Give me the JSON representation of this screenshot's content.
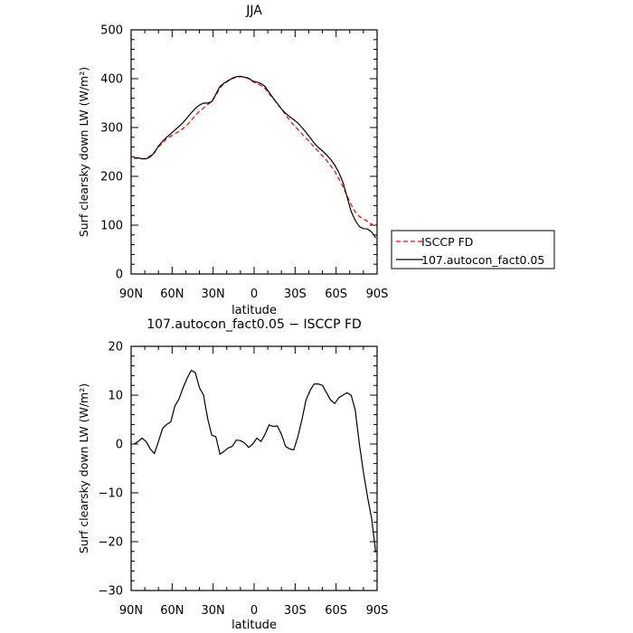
{
  "chart_data": [
    {
      "type": "line",
      "title": "JJA",
      "xlabel": "latitude",
      "ylabel": "Surf clearsky down LW (W/m²)",
      "xlim": [
        90,
        -90
      ],
      "ylim": [
        0,
        500
      ],
      "x_ticks": [
        90,
        60,
        30,
        0,
        -30,
        -60,
        -90
      ],
      "x_tick_labels": [
        "90N",
        "60N",
        "30N",
        "0",
        "30S",
        "60S",
        "90S"
      ],
      "y_ticks": [
        0,
        100,
        200,
        300,
        400,
        500
      ],
      "y_tick_labels": [
        "0",
        "100",
        "200",
        "300",
        "400",
        "500"
      ],
      "legend": {
        "placement": "right, outside plot",
        "entries": [
          "ISCCP FD",
          "107.autocon_fact0.05"
        ]
      },
      "series": [
        {
          "name": "ISCCP FD",
          "color": "#ff0000",
          "dash": "dashed",
          "x": [
            88,
            85,
            82,
            79,
            76,
            73,
            70,
            67,
            64,
            61,
            58,
            55,
            52,
            49,
            46,
            43,
            40,
            37,
            34,
            31,
            28,
            25,
            22,
            19,
            16,
            13,
            10,
            7,
            4,
            1,
            -2,
            -5,
            -8,
            -11,
            -14,
            -17,
            -20,
            -23,
            -26,
            -29,
            -32,
            -35,
            -38,
            -41,
            -44,
            -47,
            -50,
            -53,
            -56,
            -59,
            -62,
            -65,
            -68,
            -71,
            -74,
            -77,
            -80,
            -83,
            -86,
            -89
          ],
          "y": [
            237,
            237,
            236,
            237,
            242,
            250,
            260,
            268,
            277,
            282,
            287,
            292,
            298,
            305,
            315,
            324,
            333,
            340,
            347,
            353,
            366,
            381,
            390,
            395,
            400,
            403,
            404,
            403,
            400,
            394,
            390,
            386,
            380,
            369,
            359,
            349,
            338,
            326,
            315,
            305,
            296,
            287,
            278,
            269,
            260,
            251,
            242,
            233,
            222,
            210,
            195,
            179,
            160,
            142,
            127,
            118,
            113,
            108,
            102,
            96
          ]
        },
        {
          "name": "107.autocon_fact0.05",
          "color": "#000000",
          "dash": "solid",
          "x": [
            88,
            85,
            82,
            79,
            76,
            73,
            70,
            67,
            64,
            61,
            58,
            55,
            52,
            49,
            46,
            43,
            40,
            37,
            34,
            31,
            28,
            25,
            22,
            19,
            16,
            13,
            10,
            7,
            4,
            1,
            -2,
            -5,
            -8,
            -11,
            -14,
            -17,
            -20,
            -23,
            -26,
            -29,
            -32,
            -35,
            -38,
            -41,
            -44,
            -47,
            -50,
            -53,
            -56,
            -59,
            -62,
            -65,
            -68,
            -71,
            -74,
            -77,
            -80,
            -83,
            -86,
            -89
          ],
          "y": [
            237,
            238,
            236,
            236,
            240,
            248,
            262,
            272,
            280,
            287,
            295,
            302,
            310,
            320,
            330,
            339,
            346,
            350,
            350,
            353,
            368,
            384,
            391,
            396,
            401,
            404,
            405,
            403,
            401,
            395,
            393,
            390,
            384,
            372,
            360,
            349,
            338,
            329,
            322,
            316,
            309,
            300,
            290,
            279,
            268,
            259,
            252,
            244,
            235,
            223,
            208,
            188,
            158,
            128,
            110,
            97,
            93,
            92,
            86,
            74
          ]
        }
      ]
    },
    {
      "type": "line",
      "title": "107.autocon_fact0.05 − ISCCP FD",
      "xlabel": "latitude",
      "ylabel": "Surf clearsky down LW (W/m²)",
      "xlim": [
        90,
        -90
      ],
      "ylim": [
        -30,
        20
      ],
      "x_ticks": [
        90,
        60,
        30,
        0,
        -30,
        -60,
        -90
      ],
      "x_tick_labels": [
        "90N",
        "60N",
        "30N",
        "0",
        "30S",
        "60S",
        "90S"
      ],
      "y_ticks": [
        -30,
        -20,
        -10,
        0,
        10,
        20
      ],
      "y_tick_labels": [
        "−30",
        "−20",
        "−10",
        "0",
        "10",
        "20"
      ],
      "series": [
        {
          "color": "#000000",
          "dash": "solid",
          "x": [
            88,
            85,
            82,
            79,
            76,
            73,
            70,
            67,
            64,
            61,
            58,
            55,
            52,
            49,
            46,
            43,
            40,
            37,
            34,
            31,
            28,
            25,
            22,
            19,
            16,
            13,
            10,
            7,
            4,
            1,
            -2,
            -5,
            -8,
            -11,
            -14,
            -17,
            -20,
            -23,
            -26,
            -29,
            -32,
            -35,
            -38,
            -41,
            -44,
            -47,
            -50,
            -53,
            -56,
            -59,
            -62,
            -65,
            -68,
            -71,
            -74,
            -77,
            -80,
            -83,
            -86,
            -89
          ],
          "y": [
            -0.1,
            0.5,
            1.2,
            0.5,
            -1.0,
            -2.0,
            0.5,
            3.2,
            4.0,
            4.5,
            7.8,
            9.2,
            11.5,
            13.5,
            15.1,
            14.6,
            11.5,
            10.0,
            5.2,
            1.8,
            1.5,
            -2.1,
            -1.5,
            -0.8,
            -0.5,
            0.8,
            0.7,
            0.2,
            -0.7,
            0.0,
            1.2,
            0.5,
            2.0,
            3.9,
            3.6,
            3.7,
            2.0,
            -0.5,
            -1.0,
            -1.2,
            1.5,
            5.0,
            9.0,
            11.0,
            12.3,
            12.3,
            12.0,
            10.5,
            9.0,
            8.3,
            9.5,
            10.0,
            10.5,
            10.0,
            7.0,
            0.0,
            -5.8,
            -10.8,
            -15.3,
            -22.2
          ]
        }
      ]
    }
  ]
}
